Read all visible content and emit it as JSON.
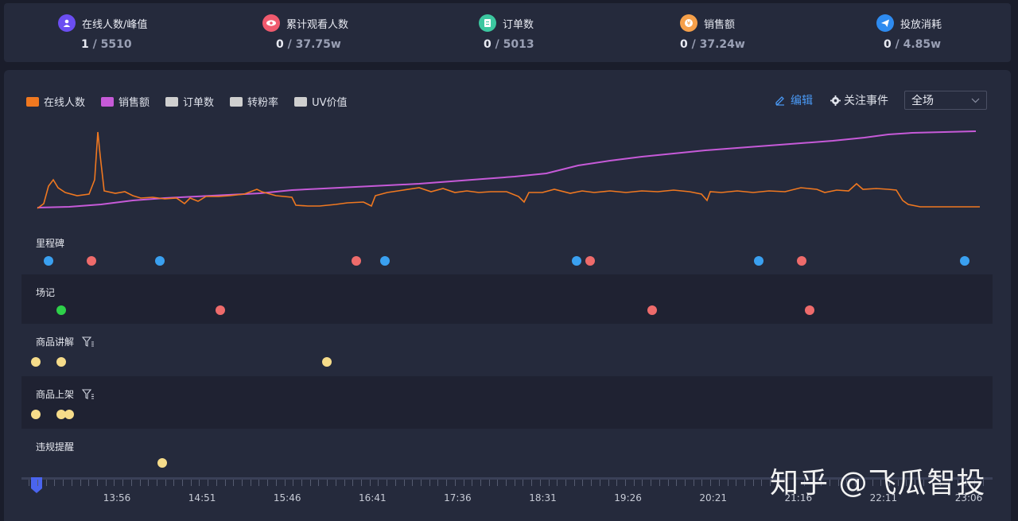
{
  "stats": [
    {
      "label": "在线人数/峰值",
      "current": "1",
      "peak": "5510",
      "color": "#6b4ef2",
      "icon": "user-icon"
    },
    {
      "label": "累计观看人数",
      "current": "0",
      "peak": "37.75w",
      "color": "#f05a6e",
      "icon": "eye-icon"
    },
    {
      "label": "订单数",
      "current": "0",
      "peak": "5013",
      "color": "#3cc7a0",
      "icon": "order-icon"
    },
    {
      "label": "销售额",
      "current": "0",
      "peak": "37.24w",
      "color": "#f6a04a",
      "icon": "yen-icon"
    },
    {
      "label": "投放消耗",
      "current": "0",
      "peak": "4.85w",
      "color": "#2e8bf0",
      "icon": "send-icon"
    }
  ],
  "legend": [
    {
      "label": "在线人数",
      "color": "#f07820",
      "active": true
    },
    {
      "label": "销售额",
      "color": "#c65ad8",
      "active": true
    },
    {
      "label": "订单数",
      "color": "#cfcfcf",
      "active": false
    },
    {
      "label": "转粉率",
      "color": "#cfcfcf",
      "active": false
    },
    {
      "label": "UV价值",
      "color": "#cfcfcf",
      "active": false
    }
  ],
  "toolbar": {
    "edit": "编辑",
    "events": "关注事件",
    "scope": "全场"
  },
  "tracks": [
    {
      "name": "里程碑",
      "filter": false
    },
    {
      "name": "场记",
      "filter": false
    },
    {
      "name": "商品讲解",
      "filter": true
    },
    {
      "name": "商品上架",
      "filter": true
    },
    {
      "name": "违规提醒",
      "filter": false
    }
  ],
  "timeline": {
    "labels": [
      "13:56",
      "14:51",
      "15:46",
      "16:41",
      "17:36",
      "18:31",
      "19:26",
      "20:21",
      "21:16",
      "22:11",
      "23:06"
    ]
  },
  "colors": {
    "blue_dot": "#3aa0f0",
    "red_dot": "#ee6b6b",
    "green_dot": "#2ed14a",
    "yellow_dot": "#f6dc8a"
  },
  "watermark": "知乎 @飞瓜智投"
}
